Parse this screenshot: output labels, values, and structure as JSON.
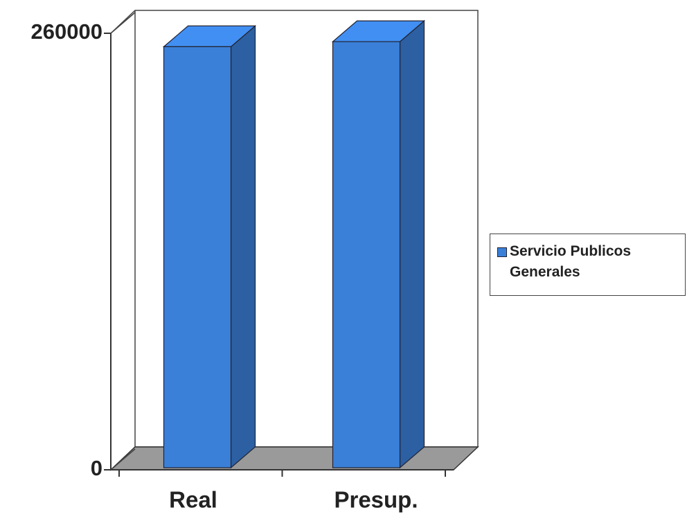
{
  "chart_data": {
    "type": "bar3d",
    "categories": [
      "Real",
      "Presup."
    ],
    "series": [
      {
        "name": "Servicio Publicos Generales",
        "color": "#3a80d8",
        "values": [
          252000,
          255000
        ]
      }
    ],
    "ylim": [
      0,
      260000
    ],
    "yticks": [
      0,
      260000
    ],
    "legend": "right"
  }
}
